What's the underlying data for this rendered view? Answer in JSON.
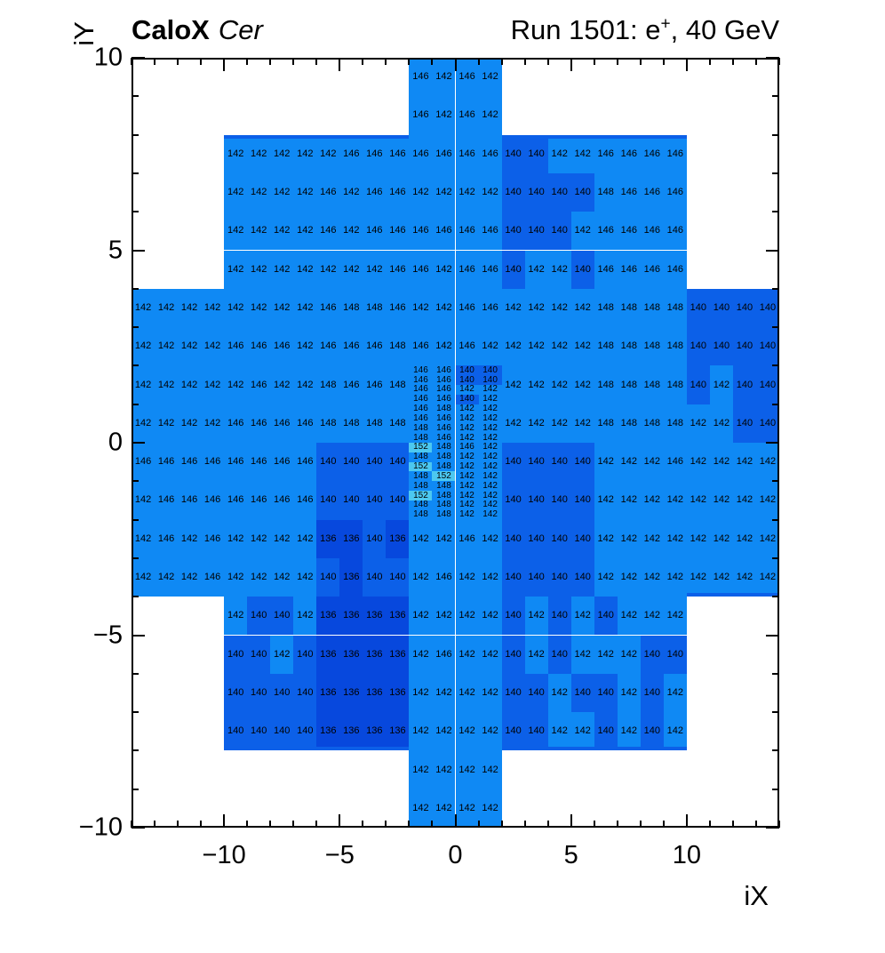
{
  "header": {
    "left_bold": "CaloX",
    "left_italic": "Cer",
    "right_prefix": "Run 1501: e",
    "right_sup": "+",
    "right_suffix": ", 40 GeV"
  },
  "axes": {
    "x": {
      "title": "iX",
      "range": [
        -14,
        14
      ],
      "minor_step": 1,
      "major_step": 5,
      "ticks": [
        {
          "v": -10,
          "label": "−10"
        },
        {
          "v": -5,
          "label": "−5"
        },
        {
          "v": 0,
          "label": "0"
        },
        {
          "v": 5,
          "label": "5"
        },
        {
          "v": 10,
          "label": "10"
        }
      ]
    },
    "y": {
      "title": "iY",
      "range": [
        -10,
        10
      ],
      "minor_step": 1,
      "major_step": 5,
      "ticks": [
        {
          "v": 10,
          "label": "10"
        },
        {
          "v": 5,
          "label": "5"
        },
        {
          "v": 0,
          "label": "0"
        },
        {
          "v": -5,
          "label": "−5"
        },
        {
          "v": -10,
          "label": "−10"
        }
      ]
    }
  },
  "chart_data": {
    "type": "heatmap",
    "title": "Run 1501: e+, 40 GeV",
    "detector": "CaloX Cer",
    "x_range": [
      -14,
      14
    ],
    "y_range": [
      -10,
      10
    ],
    "grid": "coarse cells 1x1; central fine block 1x0.25",
    "palette": {
      "136": "#0748dd",
      "140": "#0c60e8",
      "142": "#0f89f4",
      "146": "#0f89f4",
      "148": "#0f89f4",
      "152": "#4cc8f0"
    },
    "rows": [
      {
        "y": 9.5,
        "x0": -2,
        "values": [
          146,
          142,
          146,
          142
        ]
      },
      {
        "y": 8.5,
        "x0": -2,
        "values": [
          146,
          142,
          146,
          142
        ]
      },
      {
        "y": 7.5,
        "x0": -10,
        "values": [
          142,
          142,
          142,
          142,
          142,
          146,
          146,
          146,
          146,
          146,
          146,
          146,
          140,
          140,
          142,
          142,
          146,
          146,
          146,
          146
        ]
      },
      {
        "y": 6.5,
        "x0": -10,
        "values": [
          142,
          142,
          142,
          142,
          146,
          142,
          146,
          146,
          142,
          142,
          142,
          142,
          140,
          140,
          140,
          140,
          148,
          146,
          146,
          146
        ]
      },
      {
        "y": 5.5,
        "x0": -10,
        "values": [
          142,
          142,
          142,
          142,
          146,
          142,
          146,
          146,
          146,
          146,
          146,
          146,
          140,
          140,
          140,
          142,
          146,
          146,
          146,
          146
        ]
      },
      {
        "y": 4.5,
        "x0": -10,
        "values": [
          142,
          142,
          142,
          142,
          142,
          142,
          142,
          146,
          146,
          142,
          146,
          146,
          140,
          142,
          142,
          140,
          146,
          146,
          146,
          146
        ]
      },
      {
        "y": 3.5,
        "x0": -14,
        "values": [
          142,
          142,
          142,
          142,
          142,
          142,
          142,
          142,
          146,
          148,
          148,
          146,
          142,
          142,
          146,
          146,
          142,
          142,
          142,
          142,
          148,
          148,
          148,
          148,
          140,
          140,
          140,
          140
        ]
      },
      {
        "y": 2.5,
        "x0": -14,
        "values": [
          142,
          142,
          142,
          142,
          146,
          146,
          146,
          142,
          146,
          146,
          146,
          148,
          146,
          142,
          146,
          142,
          142,
          142,
          142,
          142,
          148,
          148,
          148,
          148,
          140,
          140,
          140,
          140
        ]
      },
      {
        "y": 1.5,
        "x0": -14,
        "values": [
          142,
          142,
          142,
          142,
          142,
          146,
          142,
          142,
          148,
          146,
          146,
          148
        ]
      },
      {
        "y": 1.5,
        "x0": 2,
        "values": [
          142,
          142,
          142,
          142,
          148,
          148,
          148,
          148,
          140,
          142,
          140,
          140
        ]
      },
      {
        "y": 0.5,
        "x0": -14,
        "values": [
          142,
          142,
          142,
          142,
          146,
          146,
          146,
          146,
          148,
          148,
          148,
          148
        ]
      },
      {
        "y": 0.5,
        "x0": 2,
        "values": [
          142,
          142,
          142,
          142,
          148,
          148,
          148,
          148,
          142,
          142,
          140,
          140
        ]
      },
      {
        "y": -0.5,
        "x0": -14,
        "values": [
          146,
          146,
          146,
          146,
          146,
          146,
          146,
          146,
          140,
          140,
          140,
          140
        ]
      },
      {
        "y": -0.5,
        "x0": 2,
        "values": [
          140,
          140,
          140,
          140,
          142,
          142,
          142,
          146,
          142,
          142,
          142,
          142
        ]
      },
      {
        "y": -1.5,
        "x0": -14,
        "values": [
          142,
          146,
          146,
          146,
          146,
          146,
          146,
          146,
          140,
          140,
          140,
          140
        ]
      },
      {
        "y": -1.5,
        "x0": 2,
        "values": [
          140,
          140,
          140,
          140,
          142,
          142,
          142,
          142,
          142,
          142,
          142,
          142
        ]
      },
      {
        "y": -2.5,
        "x0": -14,
        "values": [
          142,
          146,
          142,
          146,
          142,
          142,
          142,
          142,
          136,
          136,
          140,
          136,
          142,
          142,
          146,
          142,
          140,
          140,
          140,
          140,
          142,
          142,
          142,
          142,
          142,
          142,
          142,
          142
        ]
      },
      {
        "y": -3.5,
        "x0": -14,
        "values": [
          142,
          142,
          142,
          146,
          142,
          142,
          142,
          142,
          140,
          136,
          140,
          140,
          142,
          146,
          142,
          142,
          140,
          140,
          140,
          140,
          142,
          142,
          142,
          142,
          142,
          142,
          142,
          142
        ]
      },
      {
        "y": -4.5,
        "x0": -10,
        "values": [
          142,
          140,
          140,
          142,
          136,
          136,
          136,
          136,
          142,
          142,
          142,
          142,
          140,
          142,
          140,
          142,
          140,
          142,
          142,
          142
        ]
      },
      {
        "y": -5.5,
        "x0": -10,
        "values": [
          140,
          140,
          142,
          140,
          136,
          136,
          136,
          136,
          142,
          146,
          142,
          142,
          140,
          142,
          140,
          142,
          142,
          142,
          140,
          140
        ]
      },
      {
        "y": -6.5,
        "x0": -10,
        "values": [
          140,
          140,
          140,
          140,
          136,
          136,
          136,
          136,
          142,
          142,
          142,
          142,
          140,
          140,
          142,
          140,
          140,
          142,
          140,
          142
        ]
      },
      {
        "y": -7.5,
        "x0": -10,
        "values": [
          140,
          140,
          140,
          140,
          136,
          136,
          136,
          136,
          142,
          142,
          142,
          142,
          140,
          140,
          142,
          142,
          140,
          142,
          140,
          142
        ]
      },
      {
        "y": -8.5,
        "x0": -2,
        "values": [
          142,
          142,
          142,
          142
        ]
      },
      {
        "y": -9.5,
        "x0": -2,
        "values": [
          142,
          142,
          142,
          142
        ]
      }
    ],
    "fine_block": {
      "x0": -2,
      "col_width": 1,
      "y_top": 2,
      "row_height": 0.25,
      "rows": [
        [
          146,
          146,
          140,
          140
        ],
        [
          146,
          146,
          140,
          140
        ],
        [
          146,
          146,
          142,
          142
        ],
        [
          146,
          146,
          140,
          142
        ],
        [
          146,
          148,
          142,
          142
        ],
        [
          146,
          146,
          142,
          142
        ],
        [
          148,
          146,
          142,
          142
        ],
        [
          148,
          146,
          142,
          142
        ],
        [
          152,
          148,
          146,
          142
        ],
        [
          148,
          148,
          142,
          142
        ],
        [
          152,
          148,
          142,
          142
        ],
        [
          148,
          152,
          142,
          142
        ],
        [
          148,
          148,
          142,
          142
        ],
        [
          152,
          148,
          142,
          142
        ],
        [
          148,
          148,
          142,
          142
        ],
        [
          148,
          148,
          142,
          142
        ]
      ]
    },
    "edge_strips": [
      {
        "x0": -10,
        "x1": -2,
        "y": 8,
        "dir": "down",
        "value": 140
      },
      {
        "x0": 2,
        "x1": 10,
        "y": 8,
        "dir": "down",
        "value": 140
      },
      {
        "x0": -10,
        "x1": -2,
        "y": -8,
        "dir": "up",
        "value": 140
      },
      {
        "x0": 2,
        "x1": 10,
        "y": -8,
        "dir": "up",
        "value": 140
      },
      {
        "x0": 10,
        "x1": 14,
        "y": -4,
        "dir": "up",
        "value": 140
      }
    ]
  }
}
